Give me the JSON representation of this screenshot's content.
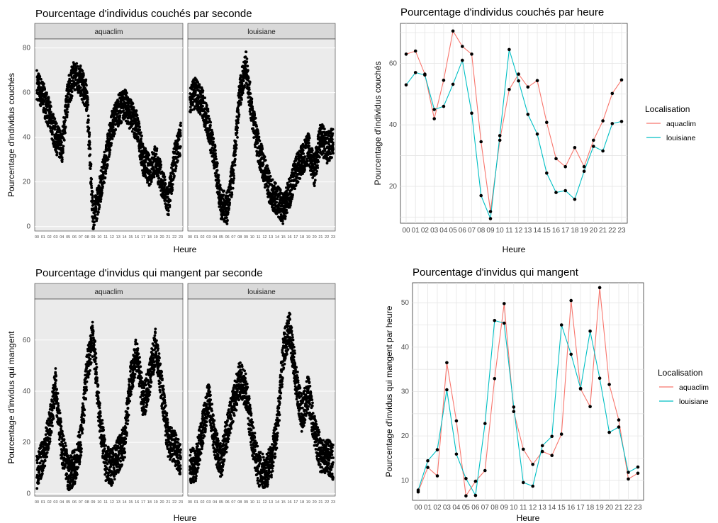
{
  "colors": {
    "aquaclim": "#F8766D",
    "louisiane": "#00BFC4",
    "points": "#000000",
    "panel_bg": "#EBEBEB",
    "strip_bg": "#D9D9D9",
    "grid": "#E5E5E5"
  },
  "chart_data": [
    {
      "type": "scatter",
      "title": "Pourcentage d'individus couchés par seconde",
      "xlabel": "Heure",
      "ylabel": "Pourcentage d'individus couchés",
      "facets": [
        "aquaclim",
        "louisiane"
      ],
      "x_ticks": [
        "00",
        "01",
        "02",
        "03",
        "04",
        "05",
        "06",
        "07",
        "08",
        "09",
        "10",
        "11",
        "12",
        "13",
        "14",
        "15",
        "16",
        "17",
        "18",
        "19",
        "20",
        "21",
        "22",
        "23"
      ],
      "ylim": [
        -2,
        84
      ],
      "y_ticks": [
        0,
        20,
        40,
        60,
        80
      ],
      "series": [
        {
          "facet": "aquaclim",
          "values": [
            64,
            58,
            50,
            40,
            35,
            60,
            68,
            65,
            58,
            3,
            15,
            30,
            45,
            52,
            55,
            50,
            45,
            30,
            25,
            30,
            20,
            10,
            30,
            40
          ]
        },
        {
          "facet": "louisiane",
          "values": [
            58,
            60,
            55,
            45,
            30,
            10,
            8,
            25,
            60,
            72,
            50,
            35,
            25,
            15,
            12,
            8,
            15,
            25,
            30,
            35,
            25,
            40,
            35,
            38
          ]
        }
      ]
    },
    {
      "type": "line",
      "title": "Pourcentage d'individus couchés par heure",
      "xlabel": "Heure",
      "ylabel": "Pourcentage d'individus couchés",
      "legend_title": "Localisation",
      "legend_position": "right",
      "categories": [
        "00",
        "01",
        "02",
        "03",
        "04",
        "05",
        "06",
        "07",
        "08",
        "09",
        "10",
        "11",
        "12",
        "13",
        "14",
        "15",
        "16",
        "17",
        "18",
        "19",
        "20",
        "21",
        "22",
        "23"
      ],
      "ylim": [
        8,
        73
      ],
      "y_ticks": [
        20,
        40,
        60
      ],
      "series": [
        {
          "name": "aquaclim",
          "values": [
            63,
            64,
            56.5,
            42,
            54.5,
            70.5,
            65.5,
            63,
            34.5,
            11.8,
            35,
            51.5,
            56.5,
            52.3,
            54.4,
            40.8,
            29,
            26.4,
            32.6,
            26.4,
            35,
            41.3,
            50.2,
            54.6
          ]
        },
        {
          "name": "louisiane",
          "values": [
            53,
            57,
            56.2,
            45,
            46,
            53.2,
            61,
            43.8,
            17,
            9.5,
            36.5,
            64.5,
            54.3,
            43.4,
            37,
            24.3,
            18,
            18.6,
            15.8,
            24.9,
            33,
            31.5,
            40.4,
            41.1
          ]
        }
      ]
    },
    {
      "type": "scatter",
      "title": "Pourcentage d'invidus qui mangent par seconde",
      "xlabel": "Heure",
      "ylabel": "Pourcentage d'invidus qui mangent",
      "facets": [
        "aquaclim",
        "louisiane"
      ],
      "x_ticks": [
        "00",
        "01",
        "02",
        "03",
        "04",
        "05",
        "06",
        "07",
        "08",
        "09",
        "10",
        "11",
        "12",
        "13",
        "14",
        "15",
        "16",
        "17",
        "18",
        "19",
        "20",
        "21",
        "22",
        "23"
      ],
      "ylim": [
        -1,
        76
      ],
      "y_ticks": [
        0,
        20,
        40,
        60
      ],
      "series": [
        {
          "facet": "aquaclim",
          "values": [
            8,
            15,
            25,
            42,
            18,
            8,
            10,
            20,
            48,
            62,
            30,
            12,
            10,
            15,
            20,
            45,
            55,
            35,
            45,
            58,
            40,
            20,
            18,
            12
          ]
        },
        {
          "facet": "louisiane",
          "values": [
            10,
            12,
            25,
            38,
            20,
            12,
            25,
            35,
            45,
            40,
            22,
            10,
            8,
            12,
            25,
            55,
            65,
            45,
            30,
            40,
            25,
            15,
            15,
            12
          ]
        }
      ]
    },
    {
      "type": "line",
      "title": "Pourcentage d'invidus qui mangent",
      "xlabel": "Heure",
      "ylabel": "Pourcentage d'invidus qui mangent par heure",
      "legend_title": "Localisation",
      "legend_position": "right",
      "categories": [
        "00",
        "01",
        "02",
        "03",
        "04",
        "05",
        "06",
        "07",
        "08",
        "09",
        "10",
        "11",
        "12",
        "13",
        "14",
        "15",
        "16",
        "17",
        "18",
        "19",
        "20",
        "21",
        "22",
        "23"
      ],
      "ylim": [
        5.5,
        54.5
      ],
      "y_ticks": [
        10,
        20,
        30,
        40,
        50
      ],
      "series": [
        {
          "name": "aquaclim",
          "values": [
            7.4,
            12.9,
            11,
            36.5,
            23.4,
            6.5,
            9.8,
            12.2,
            32.9,
            49.8,
            25.5,
            17,
            13.6,
            16.5,
            15.6,
            20.4,
            50.5,
            30.6,
            26.6,
            53.4,
            31.6,
            23.6,
            10.3,
            11.6
          ]
        },
        {
          "name": "louisiane",
          "values": [
            7.8,
            14.4,
            16.9,
            30.4,
            15.9,
            10.4,
            6.6,
            22.8,
            46,
            45.4,
            26.5,
            9.5,
            8.7,
            17.8,
            19.9,
            45,
            38.4,
            30.7,
            43.6,
            33,
            20.8,
            22,
            11.8,
            13
          ]
        }
      ]
    }
  ]
}
